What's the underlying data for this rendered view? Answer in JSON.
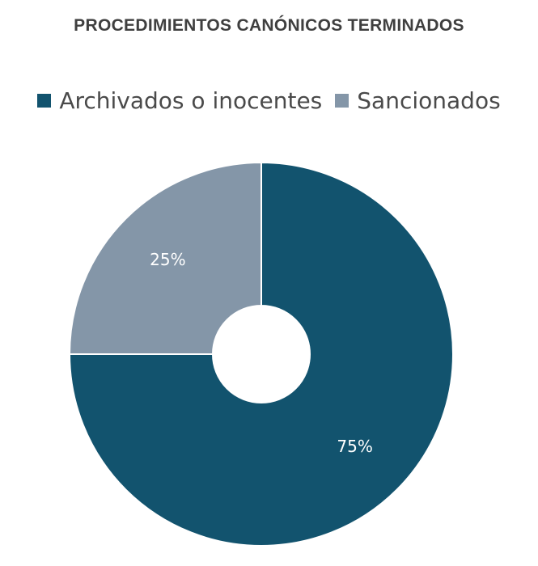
{
  "chart_data": {
    "type": "pie",
    "title": "PROCEDIMIENTOS CANÓNICOS TERMINADOS",
    "legend_position": "top",
    "categories": [
      "Archivados o inocentes",
      "Sancionados"
    ],
    "values": [
      75,
      25
    ],
    "labels": [
      "75%",
      "25%"
    ],
    "colors": [
      "#12536e",
      "#8496a8"
    ],
    "donut": true
  }
}
